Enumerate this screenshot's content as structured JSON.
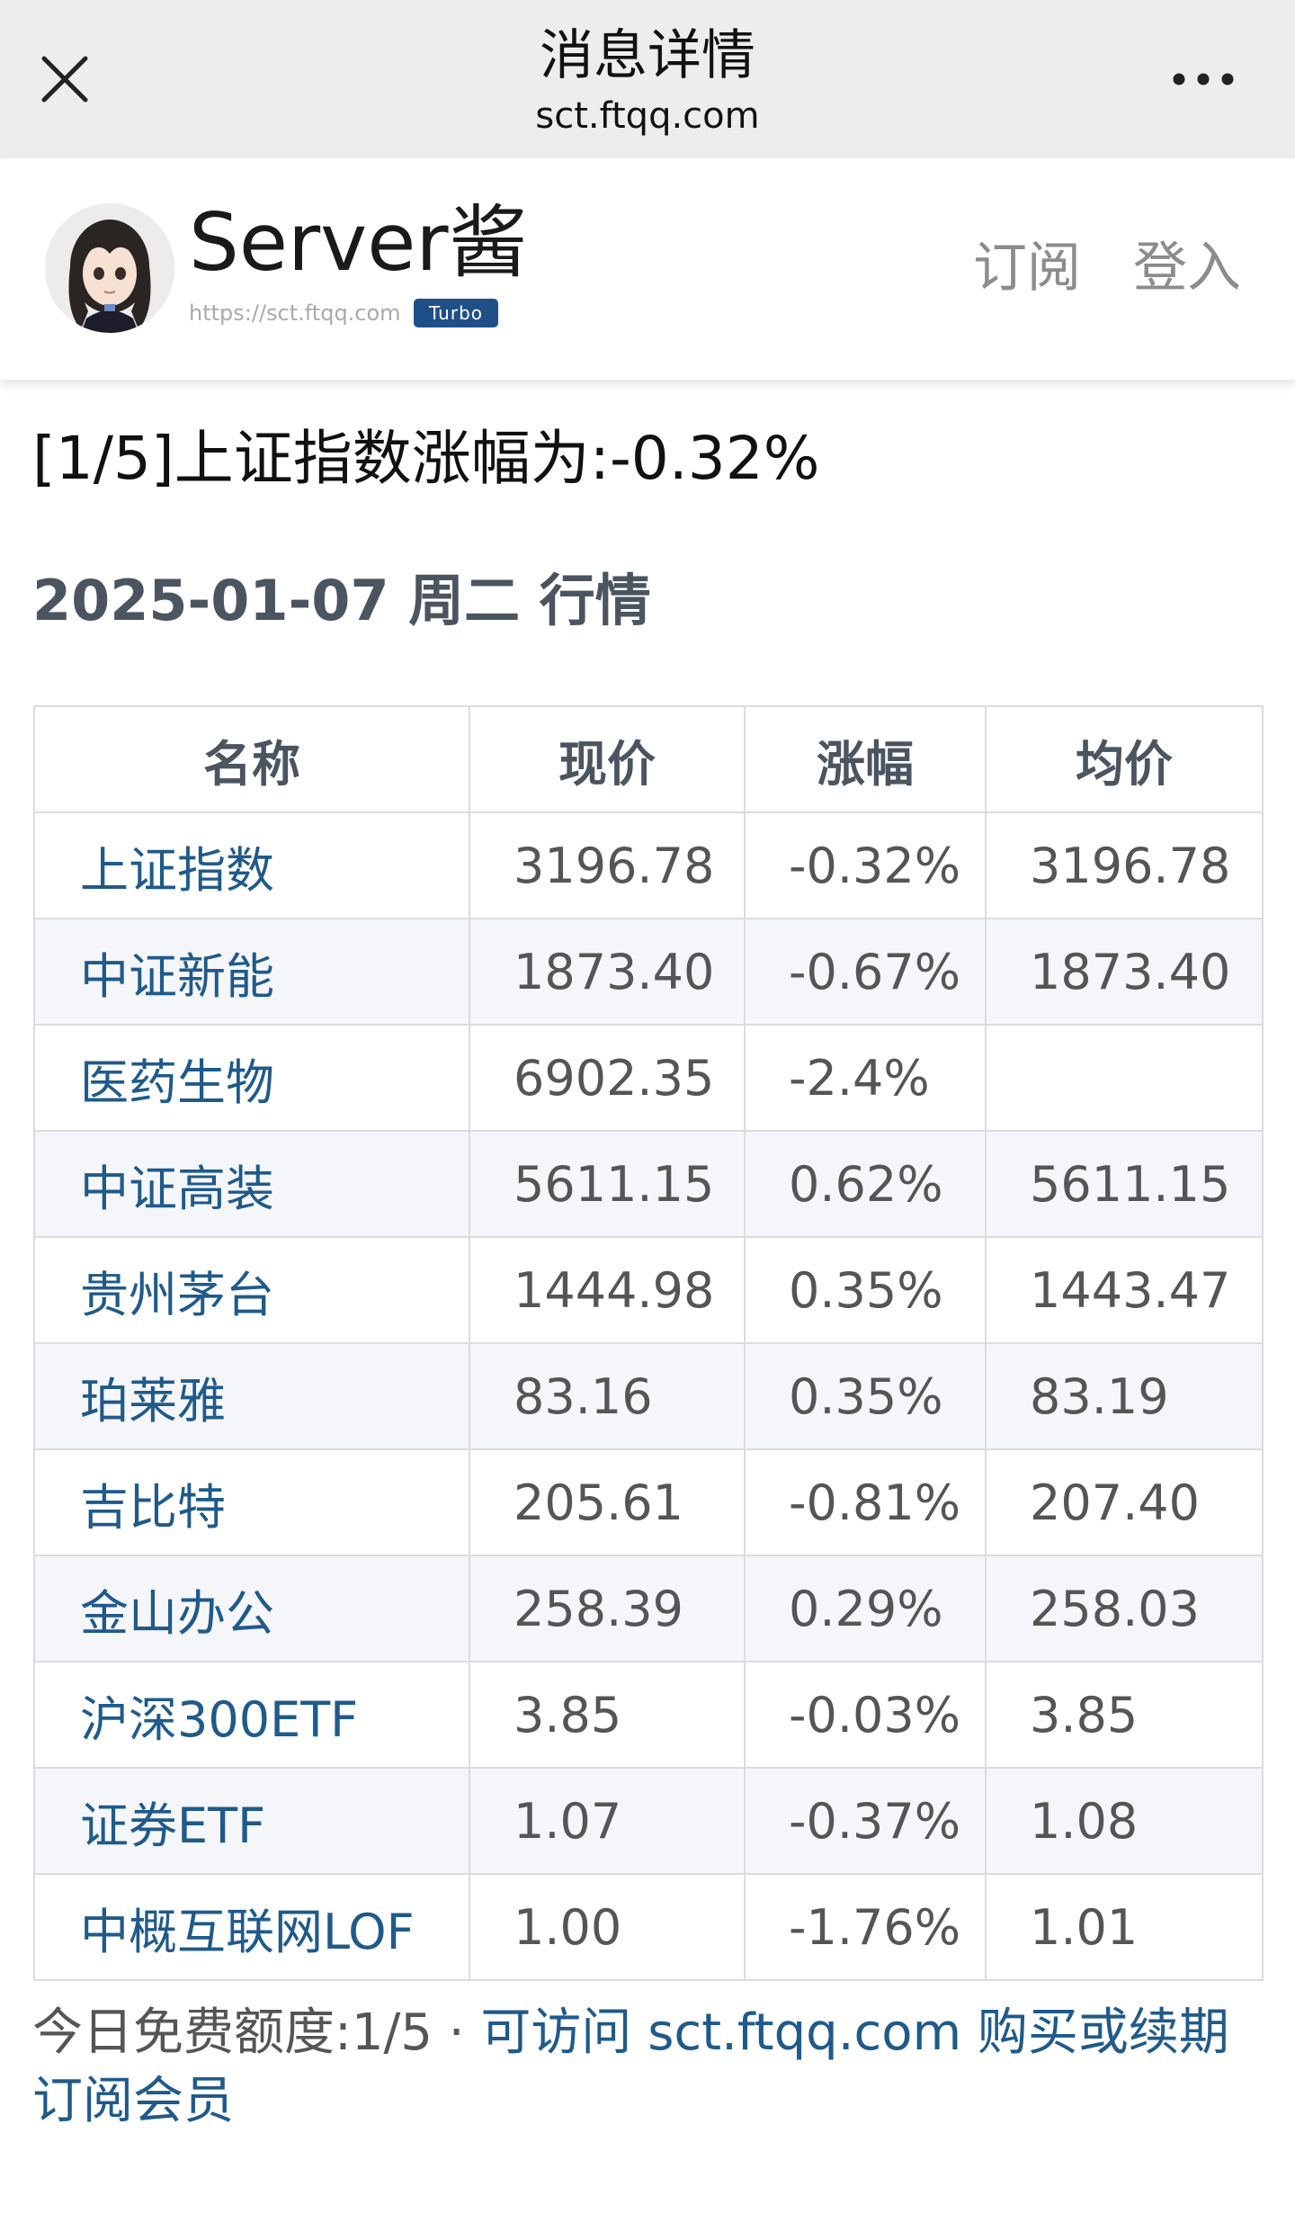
{
  "browser": {
    "title": "消息详情",
    "url": "sct.ftqq.com",
    "close_icon": "close-icon",
    "more_icon": "more-dots-icon"
  },
  "site": {
    "name": "Server酱",
    "url": "https://sct.ftqq.com",
    "badge": "Turbo",
    "nav": {
      "subscribe": "订阅",
      "login": "登入"
    },
    "avatar_icon": "anime-girl-avatar"
  },
  "message": {
    "title": "[1/5]上证指数涨幅为:-0.32%",
    "heading": "2025-01-07 周二 行情"
  },
  "table": {
    "headers": [
      "名称",
      "现价",
      "涨幅",
      "均价"
    ],
    "rows": [
      {
        "name": "上证指数",
        "price": "3196.78",
        "change": "-0.32%",
        "avg": "3196.78"
      },
      {
        "name": "中证新能",
        "price": "1873.40",
        "change": "-0.67%",
        "avg": "1873.40"
      },
      {
        "name": "医药生物",
        "price": "6902.35",
        "change": "-2.4%",
        "avg": ""
      },
      {
        "name": "中证高装",
        "price": "5611.15",
        "change": "0.62%",
        "avg": "5611.15"
      },
      {
        "name": "贵州茅台",
        "price": "1444.98",
        "change": "0.35%",
        "avg": "1443.47"
      },
      {
        "name": "珀莱雅",
        "price": "83.16",
        "change": "0.35%",
        "avg": "83.19"
      },
      {
        "name": "吉比特",
        "price": "205.61",
        "change": "-0.81%",
        "avg": "207.40"
      },
      {
        "name": "金山办公",
        "price": "258.39",
        "change": "0.29%",
        "avg": "258.03"
      },
      {
        "name": "沪深300ETF",
        "price": "3.85",
        "change": "-0.03%",
        "avg": "3.85"
      },
      {
        "name": "证券ETF",
        "price": "1.07",
        "change": "-0.37%",
        "avg": "1.08"
      },
      {
        "name": "中概互联网LOF",
        "price": "1.00",
        "change": "-1.76%",
        "avg": "1.01"
      }
    ]
  },
  "footer": {
    "quota_text": "今日免费额度:1/5 · ",
    "link_text": "可访问 sct.ftqq.com 购买或续期订阅会员"
  },
  "colors": {
    "topbar_bg": "#ededed",
    "link": "#1f5a8a",
    "heading": "#4a5560",
    "badge": "#1f4f86",
    "stripe": "#f5f6fa"
  }
}
